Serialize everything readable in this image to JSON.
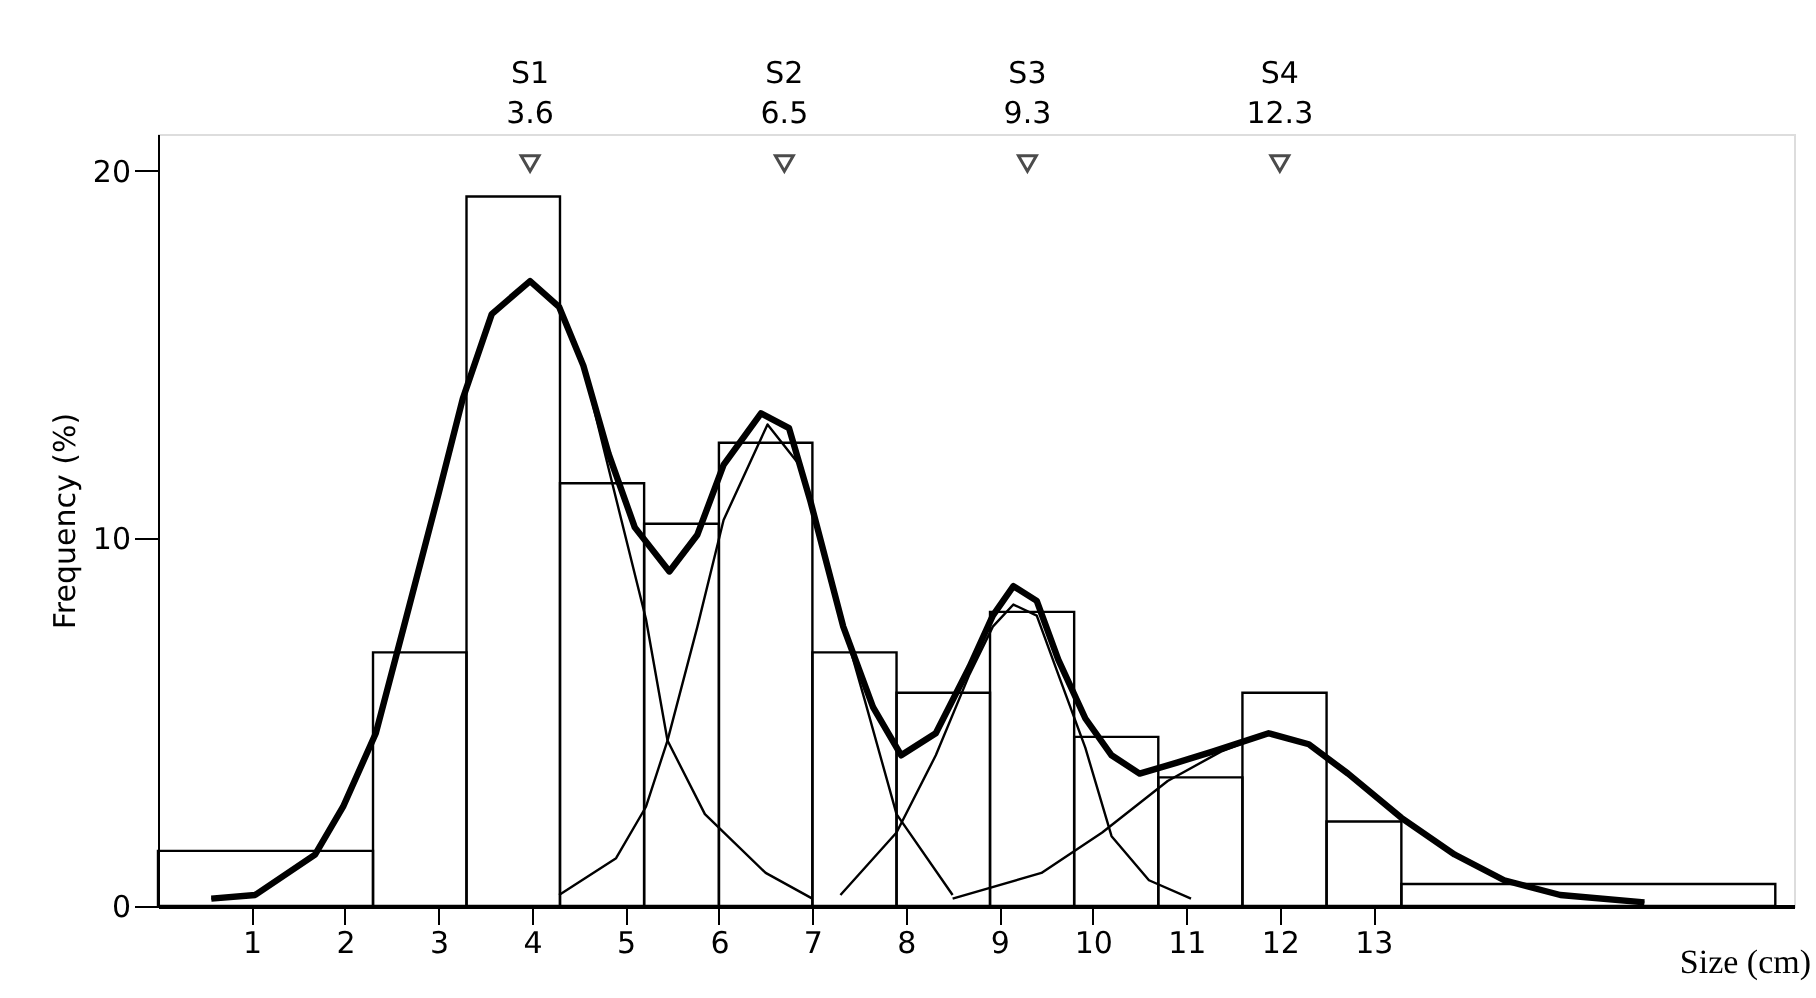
{
  "chart_data": {
    "type": "histogram",
    "xlabel": "Size (cm)",
    "ylabel": "Frequency (%)",
    "bins": [
      0,
      2.3,
      3.3,
      4.3,
      5.2,
      6.0,
      7.0,
      7.9,
      8.9,
      9.8,
      10.7,
      11.6,
      12.5,
      13.3,
      17.3
    ],
    "values": [
      1.5,
      6.9,
      19.3,
      11.5,
      10.4,
      12.6,
      6.9,
      5.8,
      8.0,
      4.6,
      3.5,
      5.8,
      2.3,
      0.6
    ],
    "color": "#000000",
    "series": [
      {
        "type": "line",
        "color": "#000000",
        "x": [
          0.57,
          1.04,
          1.68,
          1.98,
          2.33,
          2.63,
          3.0,
          3.26,
          3.57,
          3.98,
          4.29,
          4.55,
          4.82,
          5.1,
          5.47,
          5.77,
          6.05,
          6.45,
          6.75,
          6.98,
          7.33,
          7.65,
          7.95,
          8.32,
          8.68,
          8.93,
          9.15,
          9.4,
          9.63,
          9.92,
          10.2,
          10.5,
          10.9,
          11.28,
          11.88,
          12.31,
          12.73,
          13.3,
          13.87,
          14.4,
          15.0,
          15.9
        ],
        "values": [
          0.2,
          0.3,
          1.4,
          2.7,
          4.7,
          7.6,
          11.2,
          13.8,
          16.1,
          17.0,
          16.3,
          14.7,
          12.3,
          10.3,
          9.1,
          10.1,
          12.0,
          13.4,
          13.0,
          11.0,
          7.6,
          5.4,
          4.1,
          4.7,
          6.5,
          7.9,
          8.7,
          8.3,
          6.7,
          5.1,
          4.1,
          3.6,
          3.9,
          4.2,
          4.7,
          4.4,
          3.6,
          2.4,
          1.4,
          0.7,
          0.3,
          0.1
        ]
      },
      {
        "type": "line",
        "color": "#000000",
        "x": [
          0.57,
          1.04,
          1.68,
          1.98,
          2.33,
          2.63,
          3.0,
          3.26,
          3.57,
          3.98,
          4.29,
          4.55,
          4.82,
          5.22,
          5.45,
          5.85,
          6.5,
          7.0
        ],
        "values": [
          0.2,
          0.3,
          1.4,
          2.7,
          4.7,
          7.6,
          11.2,
          13.8,
          16.1,
          17.0,
          16.3,
          14.7,
          11.9,
          7.8,
          4.5,
          2.5,
          0.9,
          0.2
        ]
      },
      {
        "type": "line",
        "color": "#000000",
        "x": [
          4.29,
          4.9,
          5.22,
          5.45,
          5.77,
          6.05,
          6.52,
          6.86,
          7.18,
          7.56,
          7.9,
          8.5
        ],
        "values": [
          0.3,
          1.3,
          2.7,
          4.5,
          7.6,
          10.5,
          13.1,
          12.0,
          9.0,
          5.6,
          2.5,
          0.3
        ]
      },
      {
        "type": "line",
        "color": "#000000",
        "x": [
          7.3,
          7.9,
          8.32,
          8.68,
          8.93,
          9.15,
          9.4,
          9.63,
          9.92,
          10.2,
          10.6,
          11.05
        ],
        "values": [
          0.3,
          2.0,
          4.1,
          6.3,
          7.6,
          8.2,
          7.9,
          6.3,
          4.3,
          1.9,
          0.7,
          0.2
        ]
      },
      {
        "type": "line",
        "color": "#000000",
        "x": [
          8.5,
          9.45,
          10.1,
          10.8,
          11.37,
          11.88,
          12.31,
          12.73,
          13.3,
          13.87,
          14.4,
          15.0,
          15.9
        ],
        "values": [
          0.2,
          0.9,
          2.0,
          3.4,
          4.2,
          4.7,
          4.4,
          3.6,
          2.4,
          1.4,
          0.7,
          0.3,
          0.1
        ]
      }
    ],
    "annotations": [
      {
        "text": "S1\n3.6",
        "x": 3.98,
        "y": 20.2
      },
      {
        "text": "S2\n6.5",
        "x": 6.7,
        "y": 20.2
      },
      {
        "text": "S3\n9.3",
        "x": 9.3,
        "y": 20.2
      },
      {
        "text": "S4\n12.3",
        "x": 12.0,
        "y": 20.2
      }
    ],
    "xlim": [
      0,
      17.5
    ],
    "xticks": [
      1,
      2,
      3,
      4,
      5,
      6,
      7,
      8,
      9,
      10,
      11,
      12,
      13
    ],
    "ylim": [
      0,
      21
    ],
    "yticks": [
      0,
      10,
      20
    ],
    "grid": false,
    "marker": "none",
    "line_style": "solid"
  }
}
